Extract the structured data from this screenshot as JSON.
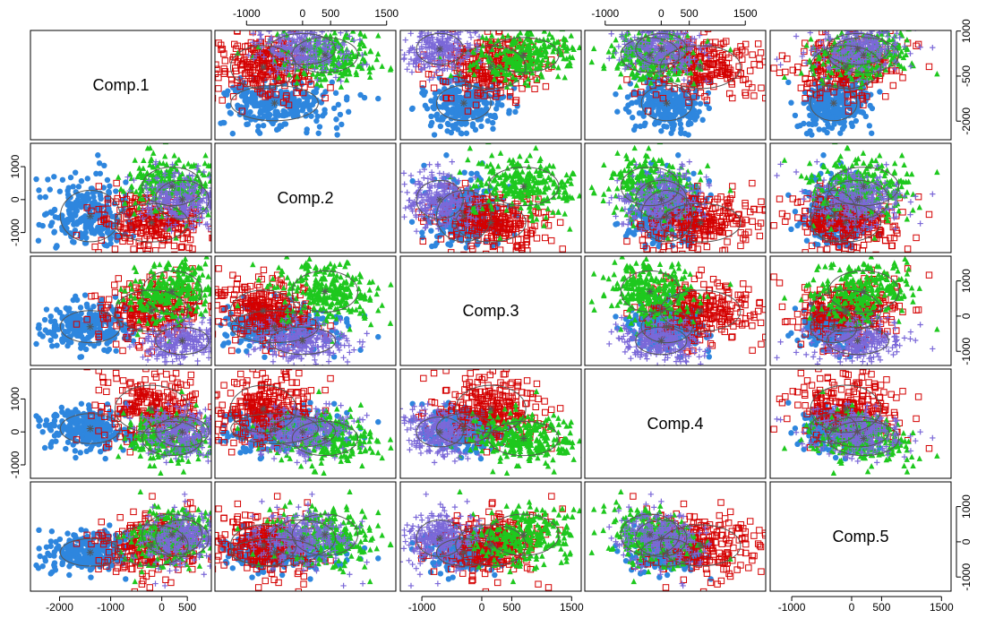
{
  "chart_data": {
    "type": "scatter",
    "kind": "scatterplot-matrix",
    "variables": [
      "Comp.1",
      "Comp.2",
      "Comp.3",
      "Comp.4",
      "Comp.5"
    ],
    "axis_ranges": {
      "Comp.1": [
        -2500,
        900
      ],
      "Comp.2": [
        -1500,
        1600
      ],
      "Comp.3": [
        -1300,
        1600
      ],
      "Comp.4": [
        -1300,
        1800
      ],
      "Comp.5": [
        -1300,
        1600
      ]
    },
    "ticks": {
      "Comp.1": {
        "values": [
          -2000,
          -1000,
          0,
          500
        ],
        "labels": [
          "-2000",
          "-1000",
          "0",
          "500"
        ]
      },
      "Comp.2": {
        "values": [
          -1000,
          0,
          500,
          1500
        ],
        "labels": [
          "-1000",
          "0",
          "500",
          "1500"
        ]
      },
      "Comp.3": {
        "values": [
          -1000,
          0,
          500,
          1500
        ],
        "labels": [
          "-1000",
          "0",
          "500",
          "1500"
        ]
      },
      "Comp.4": {
        "values": [
          -1000,
          0,
          500,
          1500
        ],
        "labels": [
          "-1000",
          "0",
          "500",
          "1500"
        ]
      },
      "Comp.5": {
        "values": [
          -1000,
          0,
          500,
          1500
        ],
        "labels": [
          "-1000",
          "0",
          "500",
          "1500"
        ]
      }
    },
    "row_tick_overrides": {
      "Comp.1": {
        "values": [
          1000,
          -500,
          -2000
        ],
        "labels": [
          "1000",
          "-500",
          "-2000"
        ]
      },
      "Comp.2": {
        "values": [
          1000,
          0,
          -1000
        ],
        "labels": [
          "1000",
          "0",
          "-1000"
        ]
      },
      "Comp.3": {
        "values": [
          1000,
          0,
          -1000
        ],
        "labels": [
          "1000",
          "0",
          "-1000"
        ]
      },
      "Comp.4": {
        "values": [
          1000,
          0,
          -1000
        ],
        "labels": [
          "1000",
          "0",
          "-1000"
        ]
      },
      "Comp.5": {
        "values": [
          1000,
          0,
          -1000
        ],
        "labels": [
          "1000",
          "0",
          "-1000"
        ]
      }
    },
    "groups": [
      {
        "color": "#2e86de",
        "marker": "circle",
        "mean": [
          -1400,
          -500,
          -300,
          100,
          -300
        ],
        "sd": [
          450,
          600,
          350,
          350,
          300
        ]
      },
      {
        "color": "#d40000",
        "marker": "square",
        "mean": [
          -200,
          -700,
          150,
          700,
          -100
        ],
        "sd": [
          550,
          450,
          450,
          550,
          450
        ]
      },
      {
        "color": "#1ec81e",
        "marker": "triangle",
        "mean": [
          200,
          400,
          700,
          -200,
          200
        ],
        "sd": [
          450,
          450,
          450,
          400,
          450
        ]
      },
      {
        "color": "#7b68d8",
        "marker": "plus",
        "mean": [
          400,
          0,
          -700,
          0,
          100
        ],
        "sd": [
          400,
          450,
          300,
          350,
          400
        ]
      }
    ],
    "points_per_group": 260,
    "grid": false,
    "legend": "none"
  }
}
